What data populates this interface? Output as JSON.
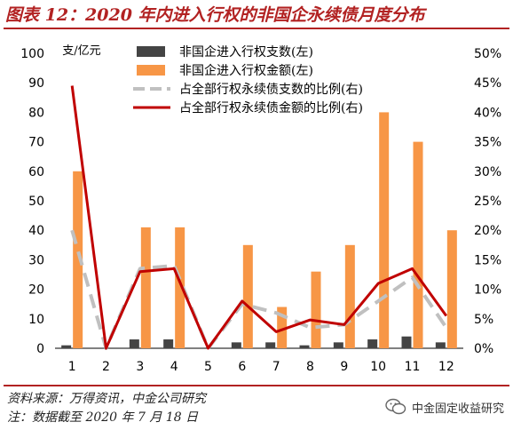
{
  "title": "图表 12：2020 年内进入行权的非国企永续债月度分布",
  "source": "资料来源：万得资讯，中金公司研究",
  "note": "注：数据截至 2020 年 7 月 18 日",
  "watermark": "中金固定收益研究",
  "watermark_icon": "wechat-icon",
  "chart_data": {
    "type": "bar",
    "categories": [
      "1",
      "2",
      "3",
      "4",
      "5",
      "6",
      "7",
      "8",
      "9",
      "10",
      "11",
      "12"
    ],
    "y_left": {
      "label": "支/亿元",
      "lim": [
        0,
        100
      ],
      "ticks": [
        "0",
        "10",
        "20",
        "30",
        "40",
        "50",
        "60",
        "70",
        "80",
        "90",
        "100"
      ]
    },
    "y_right": {
      "lim": [
        0,
        50
      ],
      "ticks": [
        "0%",
        "5%",
        "10%",
        "15%",
        "20%",
        "25%",
        "30%",
        "35%",
        "40%",
        "45%",
        "50%"
      ]
    },
    "series": [
      {
        "name": "非国企进入行权支数(左)",
        "kind": "bar",
        "axis": "left",
        "color": "#444444",
        "values": [
          1,
          0,
          3,
          3,
          0,
          2,
          2,
          1,
          2,
          3,
          4,
          2
        ]
      },
      {
        "name": "非国企进入行权金额(左)",
        "kind": "bar",
        "axis": "left",
        "color": "#f79646",
        "values": [
          60,
          0,
          41,
          41,
          0,
          35,
          14,
          26,
          35,
          80,
          70,
          40
        ]
      },
      {
        "name": "占全部行权永续债支数的比例(右)",
        "kind": "line",
        "axis": "right",
        "color": "#c0c0c0",
        "dashed": true,
        "values": [
          20,
          0,
          13.5,
          14,
          0,
          7.5,
          6,
          3.5,
          4,
          8,
          12,
          3.5
        ]
      },
      {
        "name": "占全部行权永续债金额的比例(右)",
        "kind": "line",
        "axis": "right",
        "color": "#c00000",
        "dashed": false,
        "values": [
          44.5,
          0,
          13,
          13.5,
          0,
          8,
          2.8,
          4.8,
          4,
          11,
          13.5,
          5.5
        ]
      }
    ],
    "legend": "top-center",
    "grid": false
  }
}
